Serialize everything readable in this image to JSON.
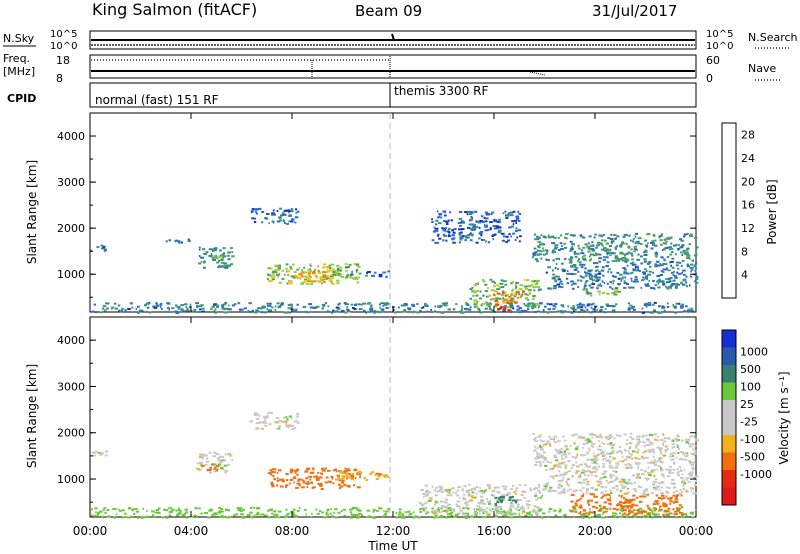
{
  "header": {
    "station": "King Salmon (fitACF)",
    "beam": "Beam 09",
    "date": "31/Jul/2017"
  },
  "top_panels": {
    "nsky_label": "N.Sky",
    "nsearch_label": "N.Search",
    "nsky_ticks": [
      "10^5",
      "10^0"
    ],
    "nsearch_ticks": [
      "10^5",
      "10^0"
    ],
    "freq_label_1": "Freq.",
    "freq_label_2": "[MHz]",
    "freq_ticks": [
      "18",
      "8"
    ],
    "nave_label": "Nave",
    "nave_ticks": [
      "60",
      "0"
    ],
    "cpid_label": "CPID",
    "cpid_segments": [
      {
        "label": "normal (fast) 151 RF",
        "start_hour": 0,
        "end_hour": 12
      },
      {
        "label": "themis 3300 RF",
        "start_hour": 12,
        "end_hour": 24
      }
    ]
  },
  "colors": {
    "power_scale": [
      "#1530d0",
      "#2a6acb",
      "#3a8c8a",
      "#4aa35a",
      "#9ccc3a",
      "#f3c21a",
      "#f08a1a",
      "#e84a1a",
      "#e01a1a"
    ],
    "velocity_scale": [
      "#1530d0",
      "#2a5ab0",
      "#3a8070",
      "#6cc83a",
      "#c8c8c8",
      "#c8c8c8",
      "#f0b020",
      "#f07010",
      "#e82a10",
      "#e01a1a"
    ]
  },
  "chart_data": [
    {
      "type": "heatmap",
      "name": "power",
      "ylabel": "Slant Range [km]",
      "ylim": [
        180,
        4500
      ],
      "yticks": [
        "1000",
        "2000",
        "3000",
        "4000"
      ],
      "xlim": [
        0,
        24
      ],
      "colorbar_label": "Power [dB]",
      "colorbar_ticks": [
        "4",
        "8",
        "12",
        "16",
        "20",
        "24",
        "28"
      ],
      "colorbar_range": [
        0,
        30
      ],
      "regions": [
        {
          "start_hour": 0.0,
          "end_hour": 0.6,
          "range_min": 1520,
          "range_max": 1650,
          "value": 6
        },
        {
          "start_hour": 2.5,
          "end_hour": 4.0,
          "range_min": 1700,
          "range_max": 1780,
          "value": 6
        },
        {
          "start_hour": 4.2,
          "end_hour": 5.6,
          "range_min": 1150,
          "range_max": 1600,
          "value": 9
        },
        {
          "start_hour": 4.8,
          "end_hour": 5.2,
          "range_min": 1300,
          "range_max": 1450,
          "value": 12
        },
        {
          "start_hour": 6.3,
          "end_hour": 8.2,
          "range_min": 2100,
          "range_max": 2450,
          "value": 5
        },
        {
          "start_hour": 7.0,
          "end_hour": 10.7,
          "range_min": 800,
          "range_max": 1250,
          "value": 14
        },
        {
          "start_hour": 7.6,
          "end_hour": 9.6,
          "range_min": 850,
          "range_max": 1120,
          "value": 20
        },
        {
          "start_hour": 9.6,
          "end_hour": 10.6,
          "range_min": 1000,
          "range_max": 1180,
          "value": 10
        },
        {
          "start_hour": 10.8,
          "end_hour": 11.8,
          "range_min": 950,
          "range_max": 1100,
          "value": 5
        },
        {
          "start_hour": 0.0,
          "end_hour": 24.0,
          "range_min": 180,
          "range_max": 400,
          "value": 7
        },
        {
          "start_hour": 15.0,
          "end_hour": 17.8,
          "range_min": 300,
          "range_max": 900,
          "value": 13
        },
        {
          "start_hour": 15.8,
          "end_hour": 17.2,
          "range_min": 350,
          "range_max": 650,
          "value": 22
        },
        {
          "start_hour": 16.0,
          "end_hour": 16.6,
          "range_min": 220,
          "range_max": 320,
          "value": 28
        },
        {
          "start_hour": 17.5,
          "end_hour": 24.0,
          "range_min": 1300,
          "range_max": 1900,
          "value": 9
        },
        {
          "start_hour": 18.0,
          "end_hour": 24.0,
          "range_min": 700,
          "range_max": 1300,
          "value": 7
        },
        {
          "start_hour": 19.5,
          "end_hour": 21.0,
          "range_min": 550,
          "range_max": 700,
          "value": 13
        },
        {
          "start_hour": 13.5,
          "end_hour": 17.0,
          "range_min": 1700,
          "range_max": 2400,
          "value": 5
        }
      ]
    },
    {
      "type": "heatmap",
      "name": "velocity",
      "ylabel": "Slant Range [km]",
      "xlabel": "Time UT",
      "ylim": [
        180,
        4500
      ],
      "yticks": [
        "1000",
        "2000",
        "3000",
        "4000"
      ],
      "xlim": [
        0,
        24
      ],
      "xticks": [
        "00:00",
        "04:00",
        "08:00",
        "12:00",
        "16:00",
        "20:00",
        "00:00"
      ],
      "colorbar_label": "Velocity [m s⁻¹]",
      "colorbar_ticks": [
        "1000",
        "500",
        "100",
        "25",
        "-25",
        "-100",
        "-500",
        "-1000"
      ],
      "regions": [
        {
          "start_hour": 0.0,
          "end_hour": 0.6,
          "range_min": 1520,
          "range_max": 1650,
          "value": 0
        },
        {
          "start_hour": 4.2,
          "end_hour": 5.6,
          "range_min": 1150,
          "range_max": 1600,
          "value": 0
        },
        {
          "start_hour": 4.4,
          "end_hour": 5.0,
          "range_min": 1200,
          "range_max": 1350,
          "value": -150
        },
        {
          "start_hour": 6.3,
          "end_hour": 8.2,
          "range_min": 2100,
          "range_max": 2450,
          "value": 0
        },
        {
          "start_hour": 7.0,
          "end_hour": 10.7,
          "range_min": 800,
          "range_max": 1250,
          "value": -150
        },
        {
          "start_hour": 9.6,
          "end_hour": 11.8,
          "range_min": 1000,
          "range_max": 1180,
          "value": -80
        },
        {
          "start_hour": 0.0,
          "end_hour": 24.0,
          "range_min": 180,
          "range_max": 400,
          "value": 60
        },
        {
          "start_hour": 13.0,
          "end_hour": 18.0,
          "range_min": 250,
          "range_max": 900,
          "value": 0
        },
        {
          "start_hour": 16.0,
          "end_hour": 17.2,
          "range_min": 450,
          "range_max": 650,
          "value": 300
        },
        {
          "start_hour": 17.5,
          "end_hour": 24.0,
          "range_min": 1300,
          "range_max": 2000,
          "value": 0
        },
        {
          "start_hour": 18.0,
          "end_hour": 24.0,
          "range_min": 700,
          "range_max": 1300,
          "value": 0
        },
        {
          "start_hour": 19.0,
          "end_hour": 23.5,
          "range_min": 250,
          "range_max": 700,
          "value": -300
        }
      ]
    }
  ]
}
